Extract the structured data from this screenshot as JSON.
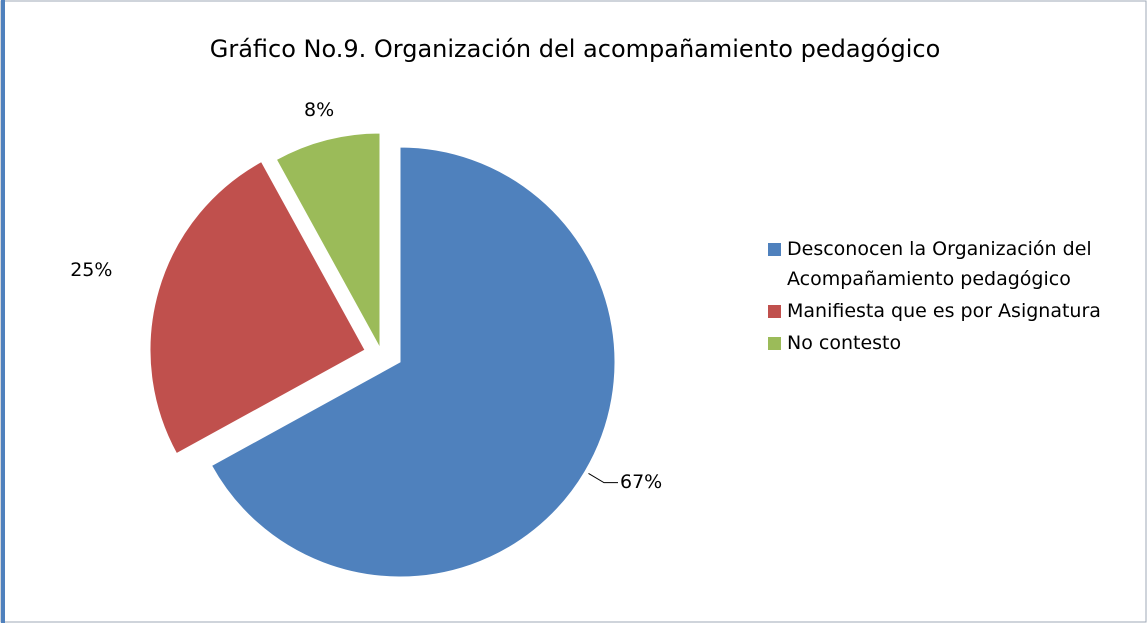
{
  "chart_data": {
    "type": "pie",
    "title": "Gráfico No.9. Organización del acompañamiento pedagógico",
    "categories": [
      "Desconocen la Organización del Acompañamiento pedagógico",
      "Manifiesta que es por Asignatura",
      "No contesto"
    ],
    "values": [
      67,
      25,
      8
    ],
    "value_labels": [
      "67%",
      "25%",
      "8%"
    ],
    "colors": [
      "#4f81bd",
      "#c0504d",
      "#9bbb59"
    ],
    "legend": "right"
  }
}
